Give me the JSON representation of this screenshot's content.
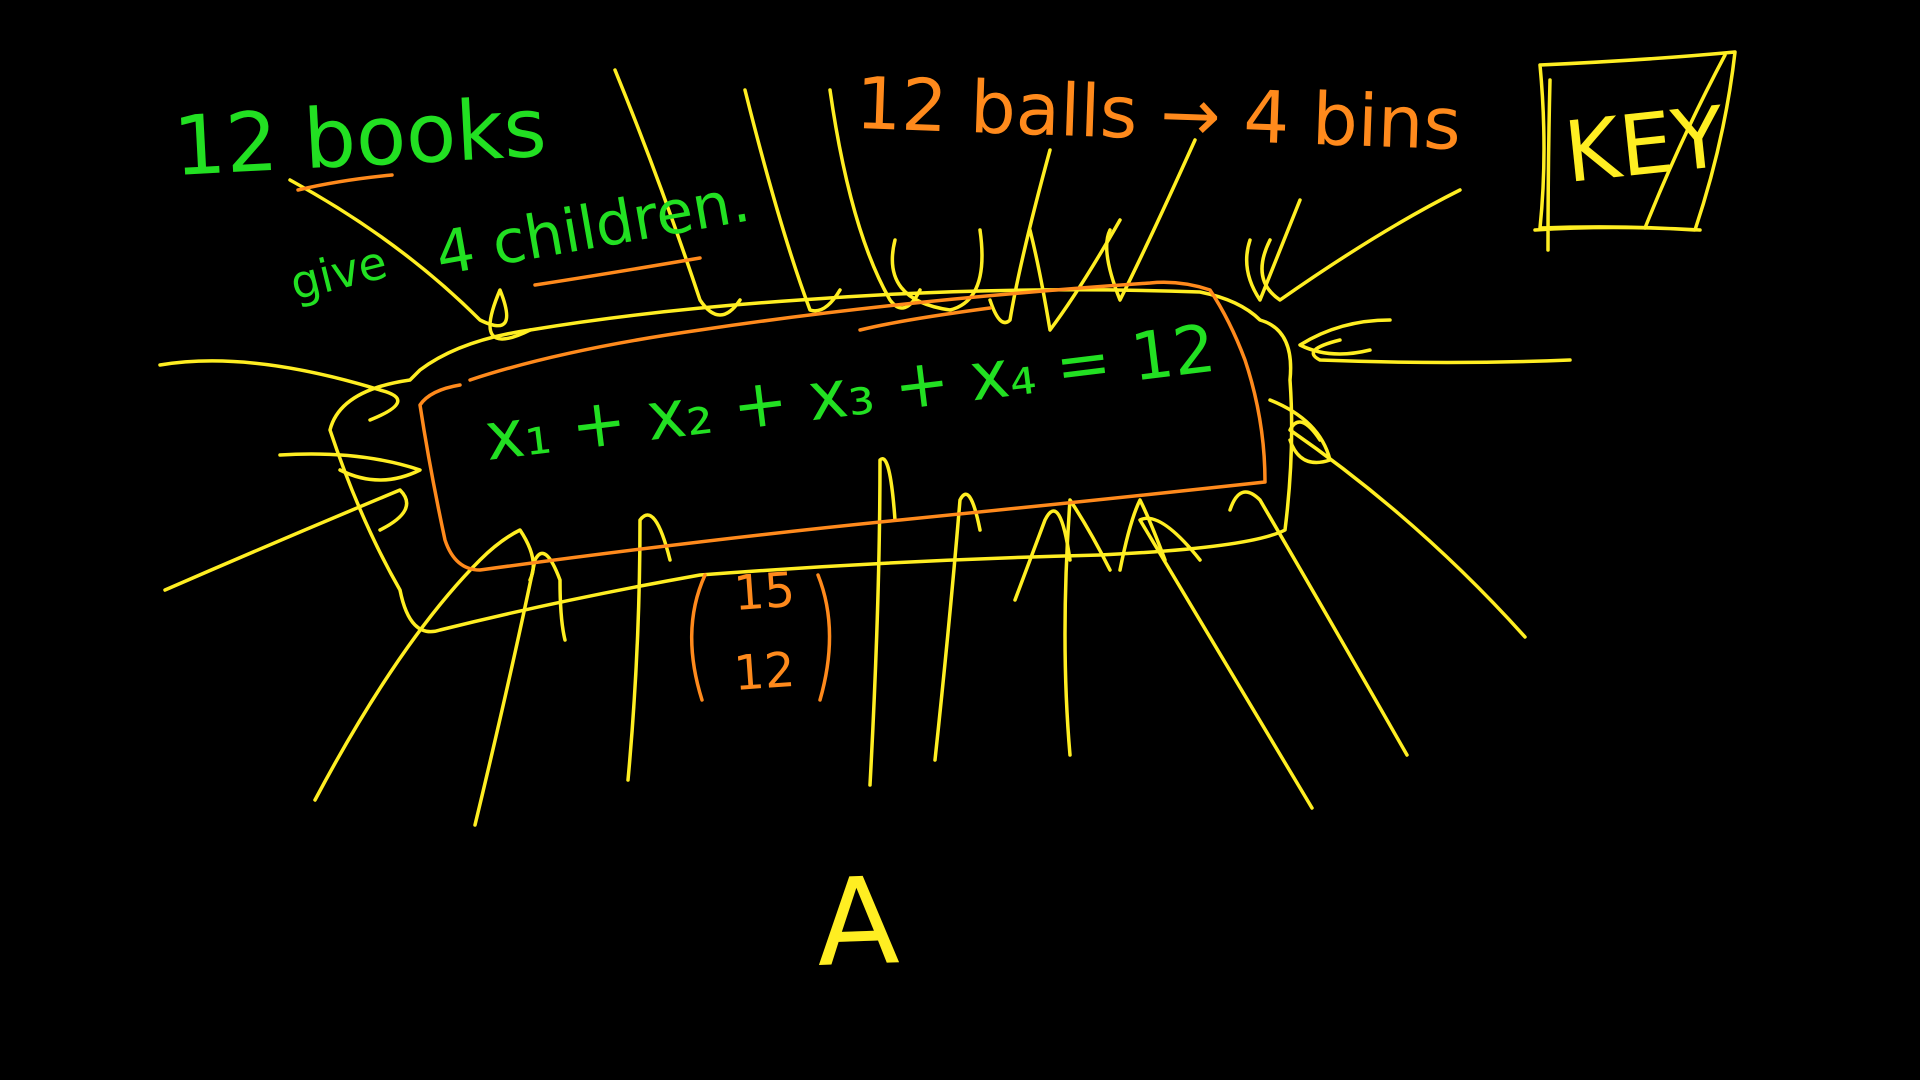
{
  "colors": {
    "background": "#000000",
    "green": "#22e022",
    "orange": "#ff8a1c",
    "yellow": "#ffee22"
  },
  "texts": {
    "top_left": "12 books",
    "give": "give",
    "children": "4 children.",
    "balls_bins": "12 balls → 4 bins",
    "key": "KEY",
    "equation": "x₁ + x₂ + x₃ + x₄ = 12",
    "binom_top": "15",
    "binom_bottom": "12",
    "bottom_letter": "A"
  }
}
